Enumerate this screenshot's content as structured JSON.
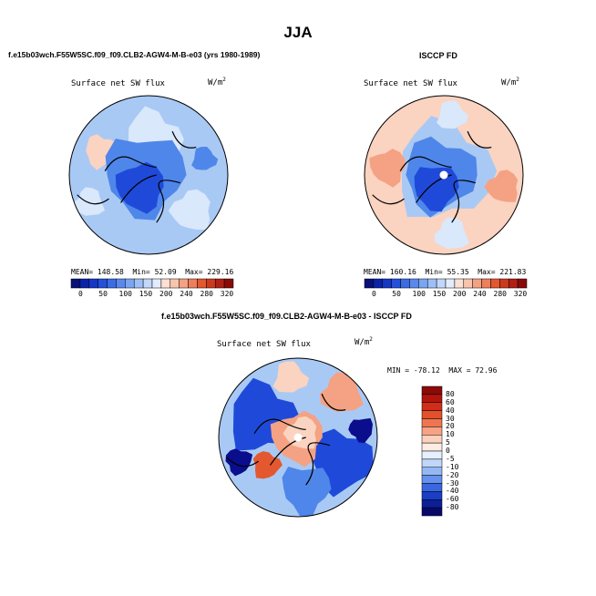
{
  "season_title": "JJA",
  "colors": {
    "deep_blue": "#0a0d8c",
    "blue": "#1f4ad9",
    "mid_blue": "#4f86ea",
    "light_blue": "#a9c9f5",
    "pale_blue": "#d9e8fb",
    "pale_red": "#fbd3c1",
    "light_red": "#f4a283",
    "red": "#e3582f",
    "dark_red": "#a6110b",
    "land_line": "#000000"
  },
  "panels": {
    "model": {
      "header": "f.e15b03wch.F55W5SC.f09_f09.CLB2-AGW4-M-B-e03 (yrs 1980-1989)",
      "subtitle": "Surface net SW flux",
      "units_base": "W/m",
      "units_exp": "2",
      "mean_label": "MEAN=",
      "mean_value": "148.58",
      "min_label": "Min=",
      "min_value": "52.09",
      "max_label": "Max=",
      "max_value": "229.16",
      "colorbar_ticks": [
        "0",
        "50",
        "100",
        "150",
        "200",
        "240",
        "280",
        "320"
      ]
    },
    "obs": {
      "header": "ISCCP FD",
      "subtitle": "Surface net SW flux",
      "units_base": "W/m",
      "units_exp": "2",
      "mean_label": "MEAN=",
      "mean_value": "160.16",
      "min_label": "Min=",
      "min_value": "55.35",
      "max_label": "Max=",
      "max_value": "221.83",
      "colorbar_ticks": [
        "0",
        "50",
        "100",
        "150",
        "200",
        "240",
        "280",
        "320"
      ]
    },
    "diff": {
      "header": "f.e15b03wch.F55W5SC.f09_f09.CLB2-AGW4-M-B-e03 - ISCCP FD",
      "subtitle": "Surface net SW flux",
      "units_base": "W/m",
      "units_exp": "2",
      "minmax_text": "MIN = -78.12  MAX = 72.96",
      "colorbar_labels": [
        "80",
        "60",
        "40",
        "30",
        "20",
        "10",
        "5",
        "0",
        "-5",
        "-10",
        "-20",
        "-30",
        "-40",
        "-60",
        "-80"
      ]
    }
  }
}
